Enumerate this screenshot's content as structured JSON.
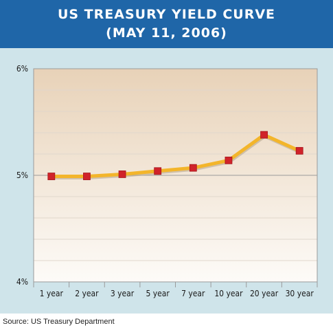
{
  "header": {
    "title_line1": "US TREASURY YIELD CURVE",
    "title_line2": "(MAY 11, 2006)"
  },
  "source": "Source: US Treasury Department",
  "colors": {
    "header_bg": "#1f66a8",
    "panel_bg": "#cfe4ea",
    "line": "#f3b52b",
    "marker": "#d0232a"
  },
  "chart_data": {
    "type": "line",
    "title": "US TREASURY YIELD CURVE (MAY 11, 2006)",
    "categories": [
      "1 year",
      "2 year",
      "3 year",
      "5 year",
      "7 year",
      "10 year",
      "20 year",
      "30 year"
    ],
    "series": [
      {
        "values": [
          4.99,
          4.99,
          5.01,
          5.04,
          5.07,
          5.14,
          5.38,
          5.23
        ]
      }
    ],
    "ylim": [
      4,
      6
    ],
    "yticks": [
      "4%",
      "5%",
      "6%"
    ],
    "xlabel": "",
    "ylabel": "",
    "grid": true,
    "legend": "none"
  }
}
